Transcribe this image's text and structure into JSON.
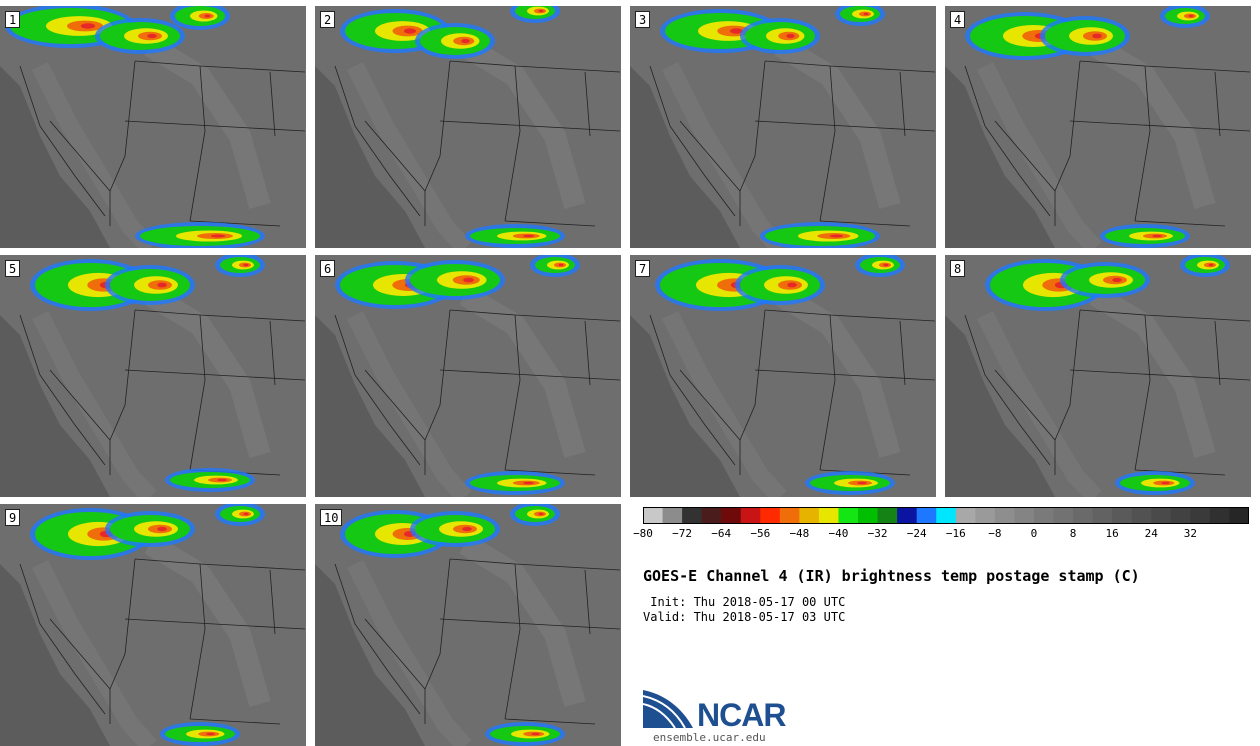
{
  "panels": [
    {
      "label": "1"
    },
    {
      "label": "2"
    },
    {
      "label": "3"
    },
    {
      "label": "4"
    },
    {
      "label": "5"
    },
    {
      "label": "6"
    },
    {
      "label": "7"
    },
    {
      "label": "8"
    },
    {
      "label": "9"
    },
    {
      "label": "10"
    }
  ],
  "colorbar": {
    "colors": [
      "#c8c8c8",
      "#8c8c8c",
      "#323232",
      "#4a1c1c",
      "#6e0a0a",
      "#c81414",
      "#ff2a00",
      "#f06e0a",
      "#e6b400",
      "#e6e600",
      "#14e614",
      "#00be00",
      "#148214",
      "#0a14a0",
      "#1e78ff",
      "#00e6ff",
      "#a8a8a8",
      "#9a9a9a",
      "#8e8e8e",
      "#848484",
      "#7a7a7a",
      "#727272",
      "#6a6a6a",
      "#626262",
      "#5a5a5a",
      "#525252",
      "#4a4a4a",
      "#424242",
      "#3a3a3a",
      "#303030",
      "#262626"
    ],
    "ticks": [
      "−80",
      "−72",
      "−64",
      "−56",
      "−48",
      "−40",
      "−32",
      "−24",
      "−16",
      "−8",
      "0",
      "8",
      "16",
      "24",
      "32"
    ]
  },
  "title": "GOES-E Channel 4 (IR) brightness temp postage stamp (C)",
  "init": " Init: Thu 2018-05-17 00 UTC",
  "valid": "Valid: Thu 2018-05-17 03 UTC",
  "logo": {
    "text": "NCAR",
    "site": "ensemble.ucar.edu"
  }
}
